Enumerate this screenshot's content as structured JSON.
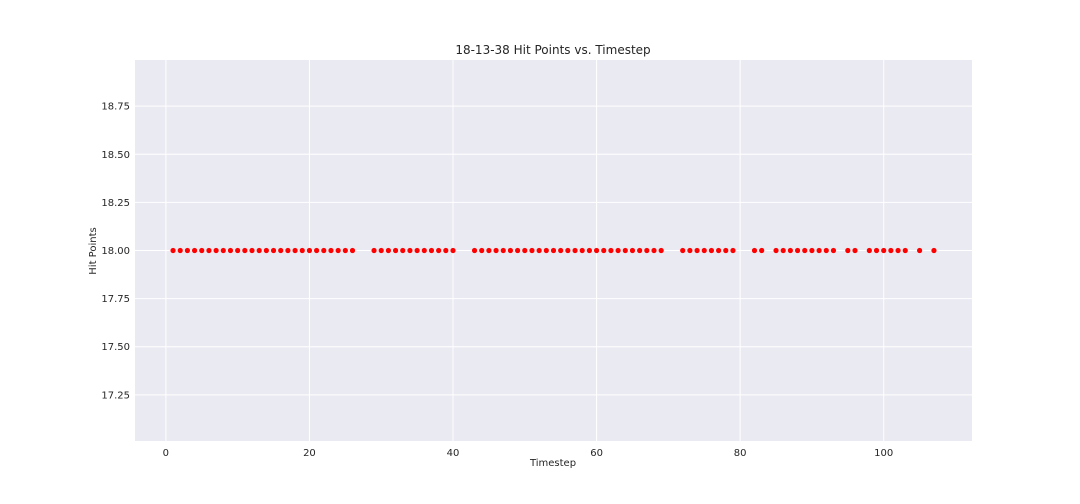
{
  "chart_data": {
    "type": "scatter",
    "title": "18-13-38 Hit Points vs. Timestep",
    "xlabel": "Timestep",
    "ylabel": "Hit Points",
    "xlim": [
      -4.3,
      112.3
    ],
    "ylim": [
      17.01,
      18.99
    ],
    "xticks": [
      0,
      20,
      40,
      60,
      80,
      100
    ],
    "yticks": [
      17.25,
      17.5,
      17.75,
      18.0,
      18.25,
      18.5,
      18.75
    ],
    "xtick_labels": [
      "0",
      "20",
      "40",
      "60",
      "80",
      "100"
    ],
    "ytick_labels": [
      "17.25",
      "17.50",
      "17.75",
      "18.00",
      "18.25",
      "18.50",
      "18.75"
    ],
    "grid": true,
    "marker_color": "#ff0000",
    "background_color": "#eaeaf2",
    "series": [
      {
        "x": [
          1,
          2,
          3,
          4,
          5,
          6,
          7,
          8,
          9,
          10,
          11,
          12,
          13,
          14,
          15,
          16,
          17,
          18,
          19,
          20,
          21,
          22,
          23,
          24,
          25,
          26,
          29,
          30,
          31,
          32,
          33,
          34,
          35,
          36,
          37,
          38,
          39,
          40,
          43,
          44,
          45,
          46,
          47,
          48,
          49,
          50,
          51,
          52,
          53,
          54,
          55,
          56,
          57,
          58,
          59,
          60,
          61,
          62,
          63,
          64,
          65,
          66,
          67,
          68,
          69,
          72,
          73,
          74,
          75,
          76,
          77,
          78,
          79,
          82,
          83,
          85,
          86,
          87,
          88,
          89,
          90,
          91,
          92,
          93,
          95,
          96,
          98,
          99,
          100,
          101,
          102,
          103,
          105,
          107
        ],
        "y": [
          18,
          18,
          18,
          18,
          18,
          18,
          18,
          18,
          18,
          18,
          18,
          18,
          18,
          18,
          18,
          18,
          18,
          18,
          18,
          18,
          18,
          18,
          18,
          18,
          18,
          18,
          18,
          18,
          18,
          18,
          18,
          18,
          18,
          18,
          18,
          18,
          18,
          18,
          18,
          18,
          18,
          18,
          18,
          18,
          18,
          18,
          18,
          18,
          18,
          18,
          18,
          18,
          18,
          18,
          18,
          18,
          18,
          18,
          18,
          18,
          18,
          18,
          18,
          18,
          18,
          18,
          18,
          18,
          18,
          18,
          18,
          18,
          18,
          18,
          18,
          18,
          18,
          18,
          18,
          18,
          18,
          18,
          18,
          18,
          18,
          18,
          18,
          18,
          18,
          18,
          18,
          18,
          18,
          18
        ]
      }
    ]
  }
}
